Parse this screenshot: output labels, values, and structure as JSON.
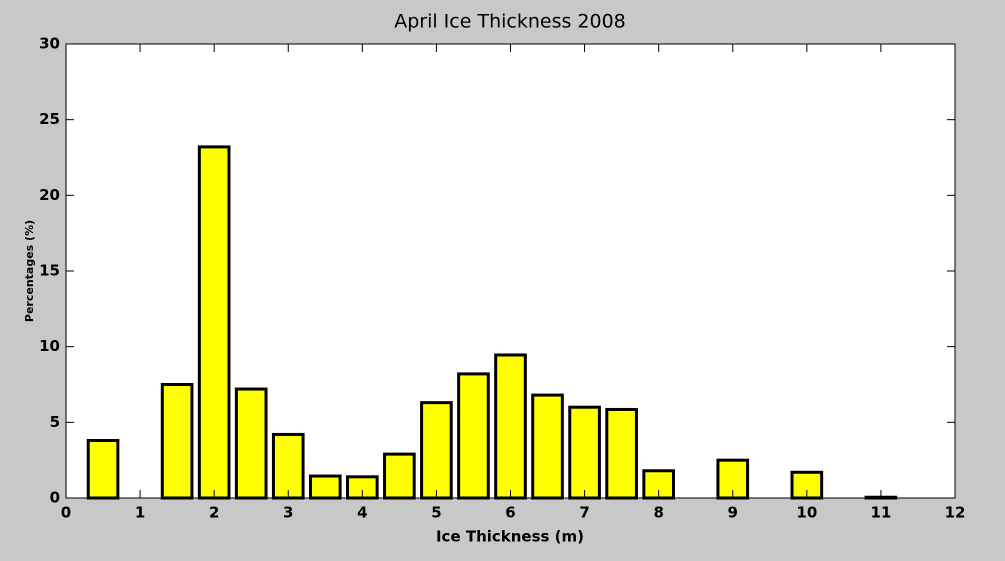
{
  "chart_data": {
    "type": "bar",
    "title": "April Ice Thickness 2008",
    "x_label": "Ice Thickness (m)",
    "y_label": "Percentages (%)",
    "x": [
      0.5,
      1.5,
      2,
      2.5,
      3,
      3.5,
      4,
      4.5,
      5,
      5.5,
      6,
      6.5,
      7,
      7.5,
      8,
      9,
      10,
      11
    ],
    "values": [
      3.8,
      7.5,
      23.2,
      7.2,
      4.2,
      1.45,
      1.4,
      2.9,
      6.3,
      8.2,
      9.45,
      6.8,
      6.0,
      5.85,
      1.8,
      2.5,
      1.7,
      0.05
    ],
    "color": "#ffff00",
    "xlim": [
      0,
      12
    ],
    "xticks": [
      0,
      1,
      2,
      3,
      4,
      5,
      6,
      7,
      8,
      9,
      10,
      11,
      12
    ],
    "ylim": [
      0,
      30
    ],
    "yticks": [
      0,
      5,
      10,
      15,
      20,
      25,
      30
    ],
    "grid": false
  }
}
